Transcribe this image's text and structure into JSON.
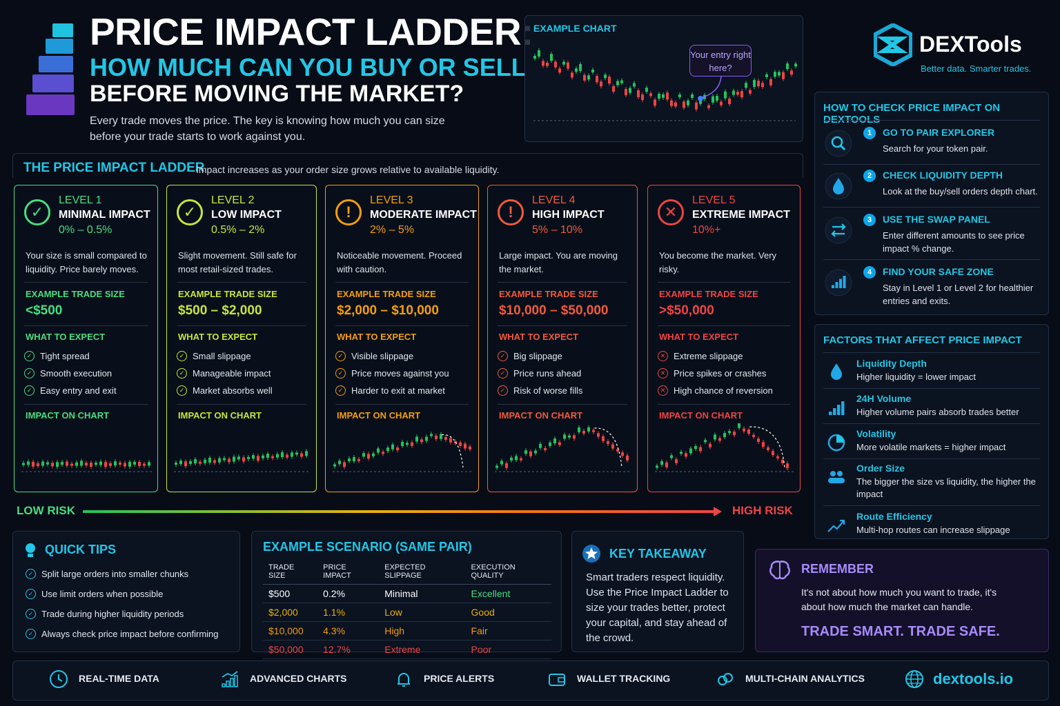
{
  "header": {
    "title": "PRICE IMPACT LADDER:",
    "subtitle": "HOW MUCH CAN YOU BUY OR SELL",
    "subtitle2": "BEFORE MOVING THE MARKET?",
    "intro": "Every trade moves the price. The key is knowing how much you can size before your trade starts to work against you."
  },
  "example_chart": {
    "title": "EXAMPLE CHART",
    "bubble": "Your entry right here?"
  },
  "brand": {
    "name": "DEXTools",
    "tagline": "Better data. Smarter trades."
  },
  "ladder": {
    "title": "THE PRICE IMPACT LADDER",
    "subtitle": "Impact increases as your order size grows relative to available liquidity.",
    "levels": [
      {
        "level": "LEVEL 1",
        "name": "MINIMAL IMPACT",
        "range": "0% – 0.5%",
        "desc": "Your size is small compared to liquidity. Price barely moves.",
        "size_label": "EXAMPLE TRADE SIZE",
        "size": "<$500",
        "expect_label": "WHAT TO EXPECT",
        "expect": [
          "Tight spread",
          "Smooth execution",
          "Easy entry and exit"
        ],
        "chart_label": "IMPACT ON CHART",
        "color": "#4ade80",
        "icon": "check-circle-icon"
      },
      {
        "level": "LEVEL 2",
        "name": "LOW IMPACT",
        "range": "0.5% – 2%",
        "desc": "Slight movement. Still safe for most retail-sized trades.",
        "size_label": "EXAMPLE TRADE SIZE",
        "size": "$500 – $2,000",
        "expect_label": "WHAT TO EXPECT",
        "expect": [
          "Small slippage",
          "Manageable impact",
          "Market absorbs well"
        ],
        "chart_label": "IMPACT ON CHART",
        "color": "#c8e63a",
        "icon": "check-circle-icon"
      },
      {
        "level": "LEVEL 3",
        "name": "MODERATE IMPACT",
        "range": "2% – 5%",
        "desc": "Noticeable movement. Proceed with caution.",
        "size_label": "EXAMPLE TRADE SIZE",
        "size": "$2,000 – $10,000",
        "expect_label": "WHAT TO EXPECT",
        "expect": [
          "Visible slippage",
          "Price moves against you",
          "Harder to exit at market"
        ],
        "chart_label": "IMPACT ON CHART",
        "color": "#f59e0b",
        "icon": "exclamation-circle-icon"
      },
      {
        "level": "LEVEL 4",
        "name": "HIGH IMPACT",
        "range": "5% – 10%",
        "desc": "Large impact. You are moving the market.",
        "size_label": "EXAMPLE TRADE SIZE",
        "size": "$10,000 – $50,000",
        "expect_label": "WHAT TO EXPECT",
        "expect": [
          "Big slippage",
          "Price runs ahead",
          "Risk of worse fills"
        ],
        "chart_label": "IMPACT ON CHART",
        "color": "#f25a3c",
        "icon": "exclamation-circle-icon"
      },
      {
        "level": "LEVEL 5",
        "name": "EXTREME IMPACT",
        "range": "10%+",
        "desc": "You become the market. Very risky.",
        "size_label": "EXAMPLE TRADE SIZE",
        "size": ">$50,000",
        "expect_label": "WHAT TO EXPECT",
        "expect": [
          "Extreme slippage",
          "Price spikes or crashes",
          "High chance of reversion"
        ],
        "chart_label": "IMPACT ON CHART",
        "color": "#ef4444",
        "icon": "x-circle-icon"
      }
    ]
  },
  "risk": {
    "low": "LOW RISK",
    "high": "HIGH RISK"
  },
  "how_to": {
    "title": "HOW TO CHECK PRICE IMPACT ON DEXTOOLS",
    "steps": [
      {
        "num": "1",
        "title": "GO TO PAIR EXPLORER",
        "desc": "Search for your token pair.",
        "icon": "search-icon"
      },
      {
        "num": "2",
        "title": "CHECK LIQUIDITY DEPTH",
        "desc": "Look at the buy/sell orders depth chart.",
        "icon": "droplet-icon"
      },
      {
        "num": "3",
        "title": "USE THE SWAP PANEL",
        "desc": "Enter different amounts to see price impact % change.",
        "icon": "swap-icon"
      },
      {
        "num": "4",
        "title": "FIND YOUR SAFE ZONE",
        "desc": "Stay in Level 1 or Level 2 for healthier entries and exits.",
        "icon": "bar-chart-icon"
      }
    ]
  },
  "factors": {
    "title": "FACTORS THAT AFFECT PRICE IMPACT",
    "items": [
      {
        "title": "Liquidity Depth",
        "desc": "Higher liquidity = lower impact",
        "icon": "droplet-icon"
      },
      {
        "title": "24H Volume",
        "desc": "Higher volume pairs absorb trades better",
        "icon": "bar-chart-icon"
      },
      {
        "title": "Volatility",
        "desc": "More volatile markets = higher impact",
        "icon": "pie-chart-icon"
      },
      {
        "title": "Order Size",
        "desc": "The bigger the size vs liquidity, the higher the impact",
        "icon": "users-icon"
      },
      {
        "title": "Route Efficiency",
        "desc": "Multi-hop routes can increase slippage",
        "icon": "trend-line-icon"
      }
    ]
  },
  "tips": {
    "title": "QUICK TIPS",
    "items": [
      "Split large orders into smaller chunks",
      "Use limit orders when possible",
      "Trade during higher liquidity periods",
      "Always check price impact before confirming"
    ]
  },
  "scenario": {
    "title": "EXAMPLE SCENARIO (SAME PAIR)",
    "headers": [
      "TRADE SIZE",
      "PRICE IMPACT",
      "EXPECTED SLIPPAGE",
      "EXECUTION QUALITY"
    ],
    "rows": [
      {
        "size": "$500",
        "impact": "0.2%",
        "slippage": "Minimal",
        "quality": "Excellent",
        "color": "#ffffff",
        "qcolor": "#4ade80"
      },
      {
        "size": "$2,000",
        "impact": "1.1%",
        "slippage": "Low",
        "quality": "Good",
        "color": "#eab308",
        "qcolor": "#eab308"
      },
      {
        "size": "$10,000",
        "impact": "4.3%",
        "slippage": "High",
        "quality": "Fair",
        "color": "#f59e0b",
        "qcolor": "#f59e0b"
      },
      {
        "size": "$50,000",
        "impact": "12.7%",
        "slippage": "Extreme",
        "quality": "Poor",
        "color": "#ef4444",
        "qcolor": "#ef4444"
      }
    ]
  },
  "takeaway": {
    "title": "KEY TAKEAWAY",
    "text": "Smart traders respect liquidity. Use the Price Impact Ladder to size your trades better, protect your capital, and stay ahead of the crowd."
  },
  "remember": {
    "title": "REMEMBER",
    "text": "It's not about how much you want to trade, it's about how much the market can handle.",
    "slogan": "TRADE SMART. TRADE SAFE."
  },
  "footer": {
    "features": [
      "REAL-TIME DATA",
      "ADVANCED CHARTS",
      "PRICE ALERTS",
      "WALLET TRACKING",
      "MULTI-CHAIN ANALYTICS"
    ],
    "site": "dextools.io"
  }
}
